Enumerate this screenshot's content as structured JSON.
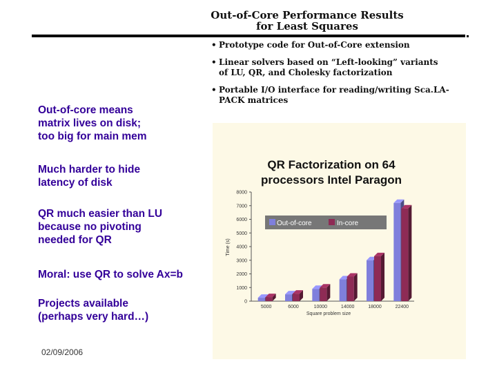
{
  "slide": {
    "title_line1": "Out-of-Core Performance Results",
    "title_line2": "for Least Squares",
    "bullets": [
      "Prototype code for Out-of-Core extension",
      "Linear solvers based on “Left-looking” variants\nof LU, QR, and Cholesky factorization",
      "Portable I/O interface for reading/writing Sca.LA-\nPACK matrices"
    ],
    "notes": [
      "Out-of-core means\n  matrix lives on disk;\n  too big for main mem",
      "Much harder to hide\n  latency of disk",
      "QR much easier than LU\n  because no pivoting\n  needed for QR",
      "Moral: use QR to solve Ax=b",
      "Projects available\n  (perhaps very hard…)"
    ],
    "date": "02/09/2006"
  },
  "chart_data": {
    "type": "bar",
    "title_line1": "QR Factorization on 64",
    "title_line2": "processors Intel Paragon",
    "ylabel": "Time (s)",
    "xlabel": "Square problem size",
    "ylim": [
      0,
      8000
    ],
    "yticks": [
      "0",
      "1000",
      "2000",
      "3000",
      "4000",
      "5000",
      "6000",
      "7000",
      "8000"
    ],
    "categories": [
      "5000",
      "6000",
      "10000",
      "14000",
      "18000",
      "22400"
    ],
    "series": [
      {
        "name": "Out-of-core",
        "color": "#7f7fdc",
        "values": [
          250,
          500,
          900,
          1600,
          3000,
          7200
        ]
      },
      {
        "name": "In-core",
        "color": "#8e2b55",
        "values": [
          300,
          550,
          1000,
          1800,
          3300,
          6800
        ]
      }
    ],
    "legend": "top-left"
  }
}
